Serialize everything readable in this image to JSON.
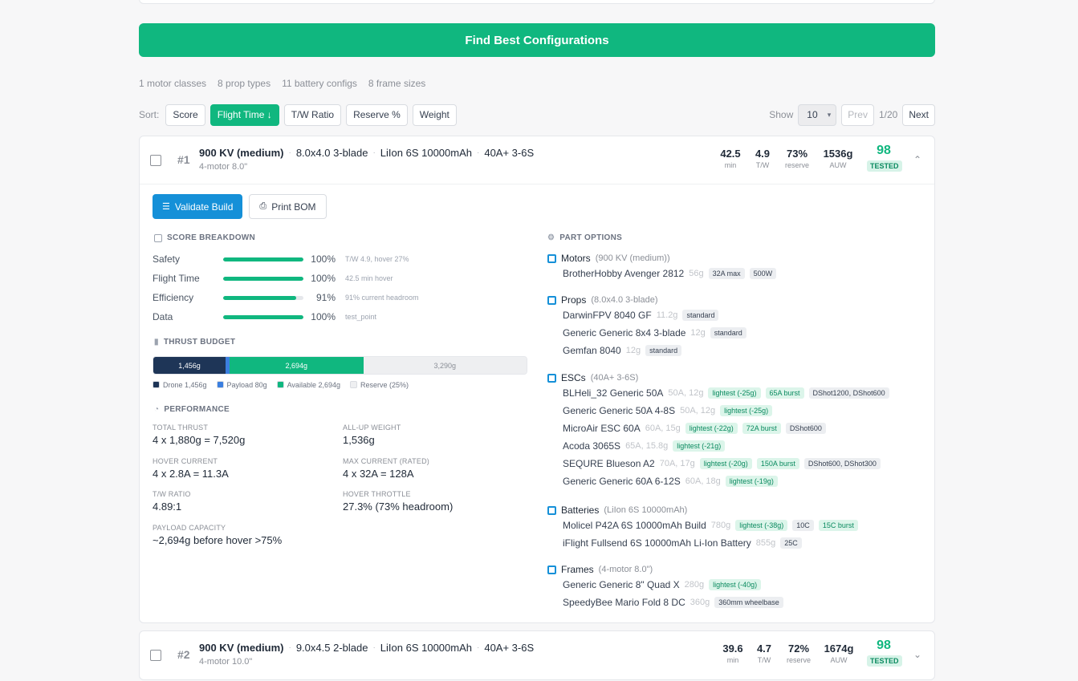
{
  "find_button": "Find Best Configurations",
  "stats": [
    "1 motor classes",
    "8 prop types",
    "11 battery configs",
    "8 frame sizes"
  ],
  "sort": {
    "label": "Sort:",
    "options": [
      "Score",
      "Flight Time ↓",
      "T/W Ratio",
      "Reserve %",
      "Weight"
    ],
    "active_index": 1
  },
  "pagination": {
    "show_label": "Show",
    "page_size": "10",
    "prev": "Prev",
    "page": "1/20",
    "next": "Next"
  },
  "results": [
    {
      "rank": "#1",
      "motor": "900 KV (medium)",
      "prop": "8.0x4.0 3-blade",
      "battery": "LiIon 6S 10000mAh",
      "esc": "40A+ 3-6S",
      "frame": "4-motor 8.0\"",
      "flight_time": "42.5",
      "flight_time_label": "min",
      "tw": "4.9",
      "tw_label": "T/W",
      "reserve": "73%",
      "reserve_label": "reserve",
      "auw": "1536g",
      "auw_label": "AUW",
      "score": "98",
      "badge": "TESTED"
    },
    {
      "rank": "#2",
      "motor": "900 KV (medium)",
      "prop": "9.0x4.5 2-blade",
      "battery": "LiIon 6S 10000mAh",
      "esc": "40A+ 3-6S",
      "frame": "4-motor 10.0\"",
      "flight_time": "39.6",
      "flight_time_label": "min",
      "tw": "4.7",
      "tw_label": "T/W",
      "reserve": "72%",
      "reserve_label": "reserve",
      "auw": "1674g",
      "auw_label": "AUW",
      "score": "98",
      "badge": "TESTED"
    }
  ],
  "detail": {
    "validate_button": "Validate Build",
    "print_button": "Print BOM",
    "score_breakdown": {
      "title": "SCORE BREAKDOWN",
      "rows": [
        {
          "label": "Safety",
          "value": 100,
          "pct": "100%",
          "note": "T/W 4.9, hover 27%"
        },
        {
          "label": "Flight Time",
          "value": 100,
          "pct": "100%",
          "note": "42.5 min hover"
        },
        {
          "label": "Efficiency",
          "value": 91,
          "pct": "91%",
          "note": "91% current headroom"
        },
        {
          "label": "Data",
          "value": 100,
          "pct": "100%",
          "note": "test_point"
        }
      ]
    },
    "thrust_budget": {
      "title": "THRUST BUDGET",
      "segments": [
        {
          "label": "1,456g",
          "value": 1456,
          "color": "#1e3557"
        },
        {
          "label": "",
          "value": 80,
          "color": "#3b7fe0"
        },
        {
          "label": "2,694g",
          "value": 2694,
          "color": "#10b77f"
        },
        {
          "label": "3,290g",
          "value": 3290,
          "color": "#eeeff1"
        }
      ],
      "legend": [
        "Drone 1,456g",
        "Payload 80g",
        "Available 2,694g",
        "Reserve (25%)"
      ]
    },
    "performance": {
      "title": "PERFORMANCE",
      "items": [
        {
          "label": "TOTAL THRUST",
          "value": "4 x 1,880g = 7,520g"
        },
        {
          "label": "ALL-UP WEIGHT",
          "value": "1,536g"
        },
        {
          "label": "HOVER CURRENT",
          "value": "4 x 2.8A = 11.3A"
        },
        {
          "label": "MAX CURRENT (RATED)",
          "value": "4 x 32A = 128A"
        },
        {
          "label": "T/W RATIO",
          "value": "4.89:1"
        },
        {
          "label": "HOVER THROTTLE",
          "value": "27.3% (73% headroom)"
        },
        {
          "label": "PAYLOAD CAPACITY",
          "value": "~2,694g before hover >75%"
        }
      ]
    },
    "part_options": {
      "title": "PART OPTIONS",
      "groups": [
        {
          "name": "Motors",
          "sub": "(900 KV (medium))",
          "icon": "motor-icon",
          "color": "#1590d8",
          "items": [
            {
              "name": "BrotherHobby Avenger 2812",
              "spec": "56g",
              "tags": [
                "32A max",
                "500W"
              ],
              "green": []
            }
          ]
        },
        {
          "name": "Props",
          "sub": "(8.0x4.0 3-blade)",
          "icon": "prop-icon",
          "color": "#1590d8",
          "items": [
            {
              "name": "DarwinFPV 8040 GF",
              "spec": "11.2g",
              "tags": [
                "standard"
              ],
              "green": []
            },
            {
              "name": "Generic Generic 8x4 3-blade",
              "spec": "12g",
              "tags": [
                "standard"
              ],
              "green": []
            },
            {
              "name": "Gemfan 8040",
              "spec": "12g",
              "tags": [
                "standard"
              ],
              "green": []
            }
          ]
        },
        {
          "name": "ESCs",
          "sub": "(40A+ 3-6S)",
          "icon": "esc-icon",
          "color": "#1590d8",
          "items": [
            {
              "name": "BLHeli_32 Generic 50A",
              "spec": "50A, 12g",
              "green": [
                "lightest (-25g)",
                "65A burst"
              ],
              "tags": [
                "DShot1200, DShot600"
              ]
            },
            {
              "name": "Generic Generic 50A 4-8S",
              "spec": "50A, 12g",
              "green": [
                "lightest (-25g)"
              ],
              "tags": []
            },
            {
              "name": "MicroAir ESC 60A",
              "spec": "60A, 15g",
              "green": [
                "lightest (-22g)",
                "72A burst"
              ],
              "tags": [
                "DShot600"
              ]
            },
            {
              "name": "Acoda 3065S",
              "spec": "65A, 15.8g",
              "green": [
                "lightest (-21g)"
              ],
              "tags": []
            },
            {
              "name": "SEQURE Blueson A2",
              "spec": "70A, 17g",
              "green": [
                "lightest (-20g)",
                "150A burst"
              ],
              "tags": [
                "DShot600, DShot300"
              ]
            },
            {
              "name": "Generic Generic 60A 6-12S",
              "spec": "60A, 18g",
              "green": [
                "lightest (-19g)"
              ],
              "tags": []
            }
          ]
        },
        {
          "name": "Batteries",
          "sub": "(LiIon 6S 10000mAh)",
          "icon": "battery-icon",
          "color": "#1590d8",
          "items": [
            {
              "name": "Molicel P42A 6S 10000mAh Build",
              "spec": "780g",
              "green": [
                "lightest (-38g)"
              ],
              "tags": [
                "10C"
              ],
              "green2": [
                "15C burst"
              ]
            },
            {
              "name": "iFlight Fullsend 6S 10000mAh Li-Ion Battery",
              "spec": "855g",
              "green": [],
              "tags": [
                "25C"
              ]
            }
          ]
        },
        {
          "name": "Frames",
          "sub": "(4-motor 8.0\")",
          "icon": "frame-icon",
          "color": "#1590d8",
          "items": [
            {
              "name": "Generic Generic 8\" Quad X",
              "spec": "280g",
              "green": [
                "lightest (-40g)"
              ],
              "tags": []
            },
            {
              "name": "SpeedyBee Mario Fold 8 DC",
              "spec": "360g",
              "green": [],
              "tags": [
                "360mm wheelbase"
              ]
            }
          ]
        }
      ]
    }
  }
}
